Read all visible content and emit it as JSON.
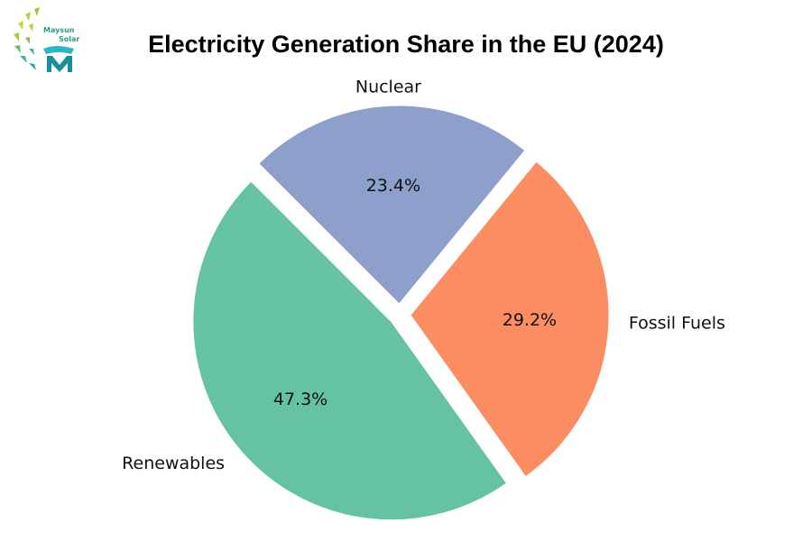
{
  "logo": {
    "text_line1": "Maysun",
    "text_line2": "Solar"
  },
  "chart_data": {
    "type": "pie",
    "title": "Electricity Generation Share in the EU (2024)",
    "categories": [
      "Renewables",
      "Fossil Fuels",
      "Nuclear"
    ],
    "values": [
      47.3,
      29.2,
      23.4
    ],
    "value_labels": [
      "47.3%",
      "29.2%",
      "23.4%"
    ],
    "colors": [
      "#66c2a5",
      "#fc8d62",
      "#8da0cb"
    ],
    "exploded": true,
    "start_angle_deg": 135,
    "direction": "counterclockwise"
  }
}
